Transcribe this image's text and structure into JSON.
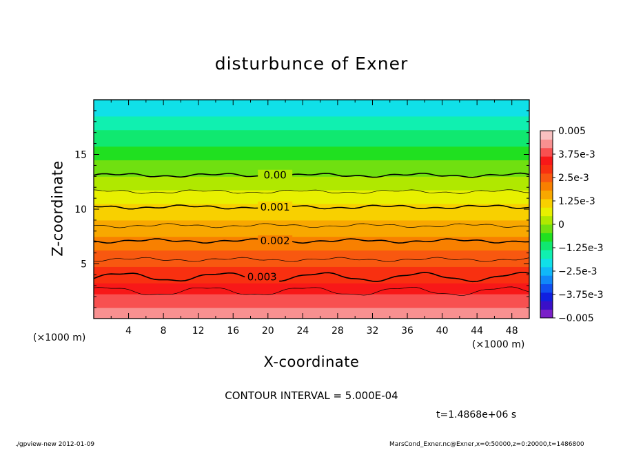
{
  "chart_data": {
    "type": "heatmap",
    "title": "disturbunce of Exner",
    "xlabel": "X-coordinate",
    "ylabel": "Z-coordinate",
    "x_unit_label": "(×1000 m)",
    "xlim": [
      0,
      50
    ],
    "ylim": [
      0,
      20
    ],
    "x_ticks": [
      4,
      8,
      12,
      16,
      20,
      24,
      28,
      32,
      36,
      40,
      44,
      48
    ],
    "y_ticks": [
      5,
      10,
      15
    ],
    "colorbar": {
      "range": [
        -0.005,
        0.005
      ],
      "tick_values": [
        0.005,
        0.00375,
        0.0025,
        0.00125,
        0,
        -0.00125,
        -0.0025,
        -0.00375,
        -0.005
      ],
      "tick_labels": [
        "0.005",
        "3.75e-3",
        "2.5e-3",
        "1.25e-3",
        "0",
        "−1.25e-3",
        "−2.5e-3",
        "−3.75e-3",
        "−0.005"
      ],
      "colors": [
        "#7a20c8",
        "#3a10c8",
        "#1020e0",
        "#1050f0",
        "#1088f8",
        "#10b8f8",
        "#10e0e8",
        "#10f0b0",
        "#10e870",
        "#20e020",
        "#70e010",
        "#b0e800",
        "#e8f000",
        "#f8d000",
        "#f8a800",
        "#f88000",
        "#f85810",
        "#f83010",
        "#f81818",
        "#f85050",
        "#f89090",
        "#f8c0c0"
      ]
    },
    "contours": [
      {
        "level": 0.0,
        "z": 13.1,
        "label": "0.00",
        "label_x": 19.0
      },
      {
        "level": 0.0005,
        "z": 11.6
      },
      {
        "level": 0.001,
        "z": 10.2,
        "label": "0.001",
        "label_x": 19.0
      },
      {
        "level": 0.0015,
        "z": 8.5
      },
      {
        "level": 0.002,
        "z": 7.1,
        "label": "0.002",
        "label_x": 19.0
      },
      {
        "level": 0.0025,
        "z": 5.4
      },
      {
        "level": 0.003,
        "z": 3.8,
        "label": "0.003",
        "label_x": 17.5
      },
      {
        "level": 0.0035,
        "z": 2.5
      }
    ],
    "contour_interval_text": "CONTOUR INTERVAL = 5.000E-04",
    "time_text": "t=1.4868e+06 s"
  },
  "footer": {
    "left": "./gpview-new   2012-01-09",
    "right": "MarsCond_Exner.nc@Exner,x=0:50000,z=0:20000,t=1486800"
  }
}
